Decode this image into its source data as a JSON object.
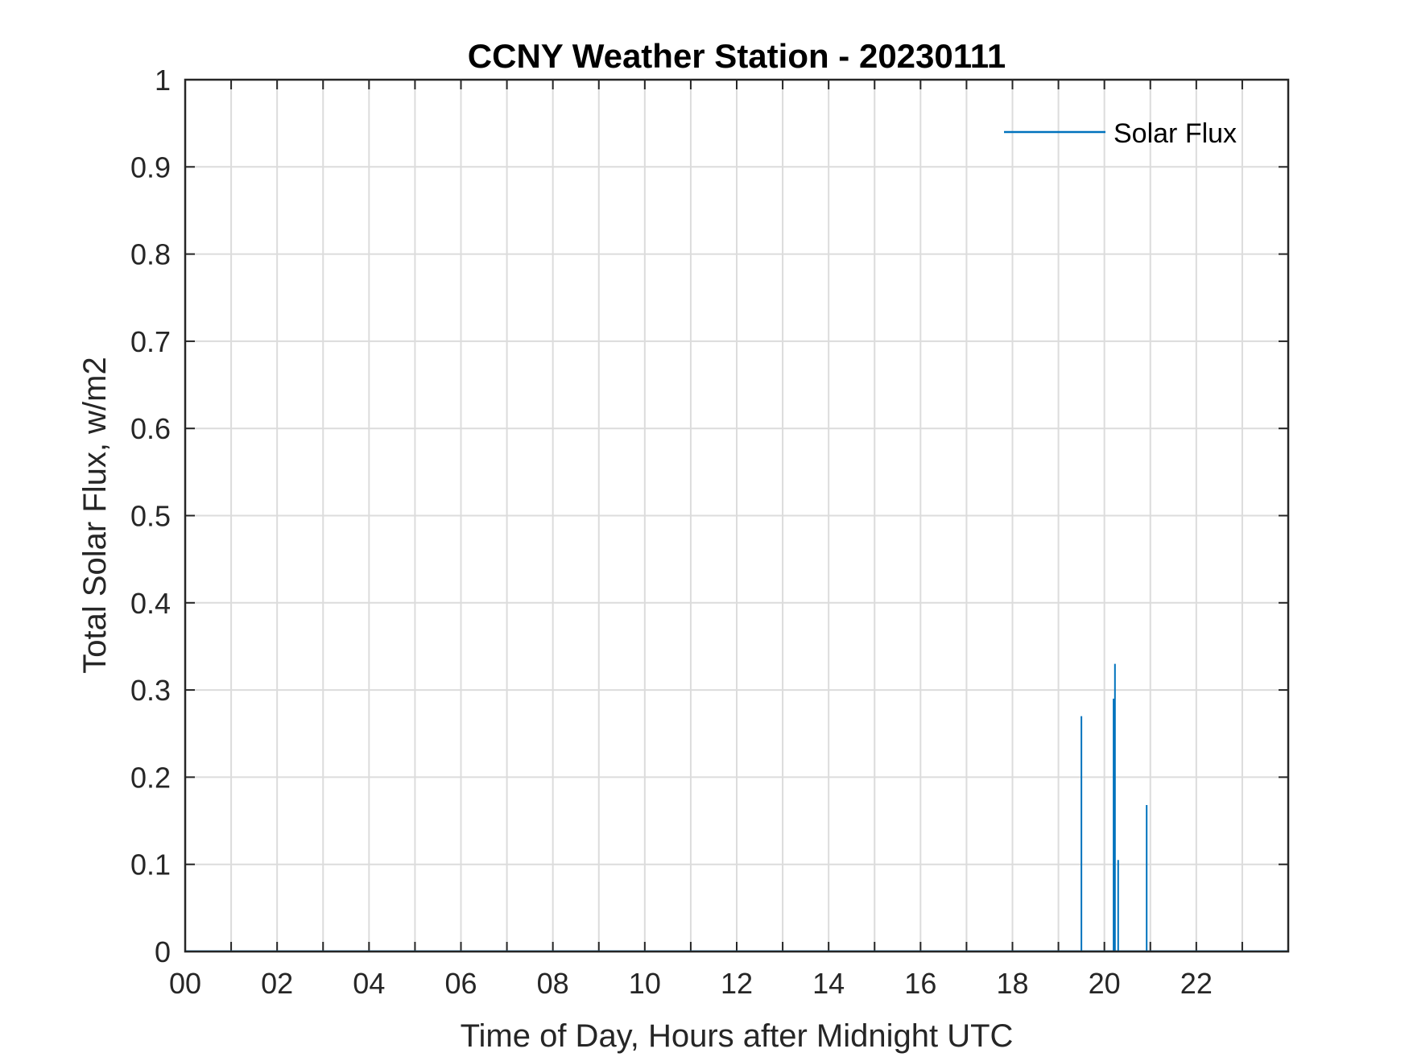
{
  "chart_data": {
    "type": "line",
    "title": "CCNY Weather Station - 20230111",
    "xlabel": "Time of Day, Hours after Midnight UTC",
    "ylabel": "Total Solar Flux, w/m2",
    "xlim": [
      0,
      24
    ],
    "ylim": [
      0,
      1
    ],
    "xticks": [
      0,
      2,
      4,
      6,
      8,
      10,
      12,
      14,
      16,
      18,
      20,
      22
    ],
    "xtick_labels": [
      "00",
      "02",
      "04",
      "06",
      "08",
      "10",
      "12",
      "14",
      "16",
      "18",
      "20",
      "22"
    ],
    "yticks": [
      0,
      0.1,
      0.2,
      0.3,
      0.4,
      0.5,
      0.6,
      0.7,
      0.8,
      0.9,
      1
    ],
    "ytick_labels": [
      "0",
      "0.1",
      "0.2",
      "0.3",
      "0.4",
      "0.5",
      "0.6",
      "0.7",
      "0.8",
      "0.9",
      "1"
    ],
    "grid": true,
    "legend_position": "top-right",
    "series": [
      {
        "name": "Solar Flux",
        "color": "#0072BD",
        "spikes": [
          {
            "x": 19.5,
            "y": 0.27
          },
          {
            "x": 20.2,
            "y": 0.29
          },
          {
            "x": 20.23,
            "y": 0.33
          },
          {
            "x": 20.3,
            "y": 0.105
          },
          {
            "x": 20.92,
            "y": 0.168
          }
        ]
      }
    ]
  }
}
